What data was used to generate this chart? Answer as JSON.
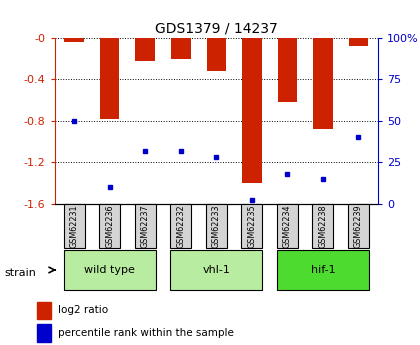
{
  "title": "GDS1379 / 14237",
  "samples": [
    "GSM62231",
    "GSM62236",
    "GSM62237",
    "GSM62232",
    "GSM62233",
    "GSM62235",
    "GSM62234",
    "GSM62238",
    "GSM62239"
  ],
  "log2_ratios": [
    -0.04,
    -0.78,
    -0.22,
    -0.2,
    -0.32,
    -1.4,
    -0.62,
    -0.88,
    -0.08
  ],
  "percentile_ranks": [
    50,
    10,
    32,
    32,
    28,
    2,
    18,
    15,
    40
  ],
  "ylim_left": [
    -1.6,
    0.0
  ],
  "yticks_left": [
    0.0,
    -0.4,
    -0.8,
    -1.2,
    -1.6
  ],
  "ytick_labels_left": [
    "-0",
    "-0.4",
    "-0.8",
    "-1.2",
    "-1.6"
  ],
  "ytick_labels_right": [
    "100%",
    "75",
    "50",
    "25",
    "0"
  ],
  "bar_color": "#cc2200",
  "marker_color": "#0000cc",
  "tick_color_left": "#cc2200",
  "tick_color_right": "#0000cc",
  "groups": [
    {
      "label": "wild type",
      "start": 0,
      "end": 2,
      "color": "#b8eca0"
    },
    {
      "label": "vhl-1",
      "start": 3,
      "end": 5,
      "color": "#b8eca0"
    },
    {
      "label": "hif-1",
      "start": 6,
      "end": 8,
      "color": "#4ddb30"
    }
  ],
  "legend_items": [
    {
      "label": "log2 ratio",
      "color": "#cc2200"
    },
    {
      "label": "percentile rank within the sample",
      "color": "#0000cc"
    }
  ]
}
